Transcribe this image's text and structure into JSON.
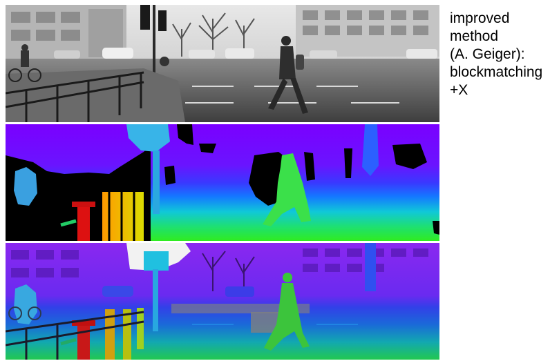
{
  "caption": {
    "lines": [
      "improved",
      "method",
      "(A. Geiger):",
      "blockmatching",
      "+X"
    ]
  },
  "panels": [
    {
      "name": "input-grayscale-image",
      "kind": "photo"
    },
    {
      "name": "disparity-map-blockmatching",
      "kind": "disparity"
    },
    {
      "name": "disparity-overlay-image",
      "kind": "overlay"
    }
  ],
  "colors": {
    "far": "#7a00ff",
    "mid": "#1e5bff",
    "near": "#22ee22",
    "closest": "#dd1111",
    "invalid": "#000000"
  }
}
